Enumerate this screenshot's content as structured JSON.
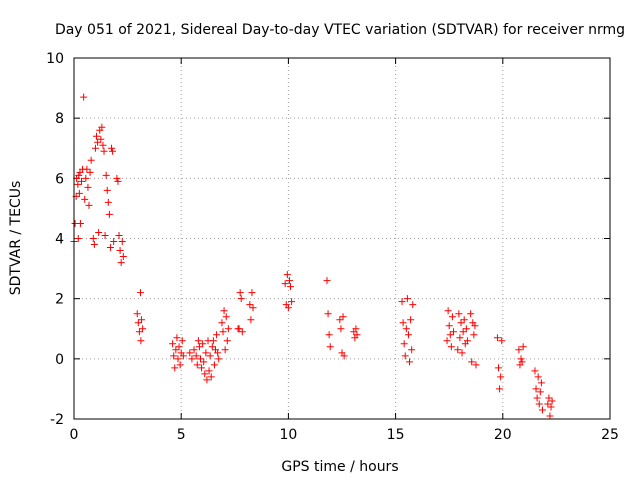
{
  "chart_data": {
    "type": "scatter",
    "title": "Day 051 of 2021, Sidereal Day-to-day VTEC variation (SDTVAR) for receiver nrmg",
    "xlabel": "GPS time / hours",
    "ylabel": "SDTVAR / TECUs",
    "xlim": [
      0,
      25
    ],
    "ylim": [
      -2,
      10
    ],
    "xticks": [
      0,
      5,
      10,
      15,
      20,
      25
    ],
    "xtick_labels": [
      "0",
      "5",
      "10",
      "15",
      "20",
      "25"
    ],
    "yticks": [
      -2,
      0,
      2,
      4,
      6,
      8,
      10
    ],
    "ytick_labels": [
      "-2",
      "0",
      "2",
      "4",
      "6",
      "8",
      "10"
    ],
    "grid": true,
    "marker": "+",
    "color": "#ff0000",
    "series": [
      {
        "name": "SDTVAR",
        "points": [
          [
            0.0,
            3.9
          ],
          [
            0.05,
            4.5
          ],
          [
            0.1,
            5.4
          ],
          [
            0.12,
            6.0
          ],
          [
            0.18,
            5.8
          ],
          [
            0.2,
            4.0
          ],
          [
            0.22,
            6.1
          ],
          [
            0.25,
            5.5
          ],
          [
            0.28,
            6.2
          ],
          [
            0.3,
            4.5
          ],
          [
            0.35,
            5.9
          ],
          [
            0.4,
            6.3
          ],
          [
            0.45,
            8.7
          ],
          [
            0.5,
            5.3
          ],
          [
            0.55,
            6.0
          ],
          [
            0.6,
            6.3
          ],
          [
            0.65,
            5.7
          ],
          [
            0.7,
            5.1
          ],
          [
            0.75,
            6.2
          ],
          [
            0.8,
            6.6
          ],
          [
            0.9,
            4.0
          ],
          [
            0.95,
            3.8
          ],
          [
            1.0,
            7.0
          ],
          [
            1.05,
            7.4
          ],
          [
            1.1,
            7.2
          ],
          [
            1.15,
            4.2
          ],
          [
            1.2,
            7.6
          ],
          [
            1.25,
            7.3
          ],
          [
            1.3,
            7.7
          ],
          [
            1.35,
            7.1
          ],
          [
            1.4,
            6.9
          ],
          [
            1.45,
            4.1
          ],
          [
            1.5,
            6.1
          ],
          [
            1.55,
            5.6
          ],
          [
            1.6,
            5.2
          ],
          [
            1.65,
            4.8
          ],
          [
            1.7,
            3.7
          ],
          [
            1.75,
            7.0
          ],
          [
            1.8,
            6.9
          ],
          [
            1.85,
            3.9
          ],
          [
            2.0,
            6.0
          ],
          [
            2.05,
            5.9
          ],
          [
            2.1,
            4.1
          ],
          [
            2.15,
            3.6
          ],
          [
            2.2,
            3.2
          ],
          [
            2.25,
            3.9
          ],
          [
            2.3,
            3.4
          ],
          [
            2.95,
            1.5
          ],
          [
            3.0,
            1.2
          ],
          [
            3.05,
            0.9
          ],
          [
            3.1,
            2.2
          ],
          [
            3.12,
            0.6
          ],
          [
            3.15,
            1.3
          ],
          [
            3.2,
            1.0
          ],
          [
            4.6,
            0.5
          ],
          [
            4.65,
            0.1
          ],
          [
            4.7,
            -0.3
          ],
          [
            4.75,
            0.3
          ],
          [
            4.8,
            0.7
          ],
          [
            4.85,
            0.0
          ],
          [
            4.9,
            0.4
          ],
          [
            4.95,
            -0.2
          ],
          [
            5.0,
            0.2
          ],
          [
            5.05,
            0.6
          ],
          [
            5.1,
            0.1
          ],
          [
            5.4,
            0.2
          ],
          [
            5.5,
            0.0
          ],
          [
            5.6,
            0.3
          ],
          [
            5.7,
            0.1
          ],
          [
            5.75,
            -0.2
          ],
          [
            5.8,
            0.6
          ],
          [
            5.85,
            0.4
          ],
          [
            5.9,
            0.0
          ],
          [
            5.95,
            -0.3
          ],
          [
            6.0,
            0.5
          ],
          [
            6.05,
            -0.1
          ],
          [
            6.1,
            -0.5
          ],
          [
            6.15,
            0.2
          ],
          [
            6.2,
            -0.7
          ],
          [
            6.25,
            0.6
          ],
          [
            6.3,
            -0.4
          ],
          [
            6.35,
            0.1
          ],
          [
            6.4,
            -0.6
          ],
          [
            6.45,
            0.4
          ],
          [
            6.5,
            0.6
          ],
          [
            6.55,
            -0.2
          ],
          [
            6.6,
            0.3
          ],
          [
            6.65,
            0.8
          ],
          [
            6.7,
            0.2
          ],
          [
            6.75,
            0.0
          ],
          [
            6.9,
            1.2
          ],
          [
            6.95,
            0.9
          ],
          [
            7.0,
            1.6
          ],
          [
            7.05,
            0.3
          ],
          [
            7.1,
            1.4
          ],
          [
            7.15,
            0.6
          ],
          [
            7.2,
            1.0
          ],
          [
            7.65,
            1.0
          ],
          [
            7.7,
            1.0
          ],
          [
            7.75,
            2.2
          ],
          [
            7.8,
            2.0
          ],
          [
            7.85,
            0.9
          ],
          [
            8.2,
            1.8
          ],
          [
            8.25,
            1.3
          ],
          [
            8.3,
            2.2
          ],
          [
            8.35,
            1.7
          ],
          [
            9.85,
            2.5
          ],
          [
            9.9,
            1.8
          ],
          [
            9.95,
            2.8
          ],
          [
            10.0,
            1.7
          ],
          [
            10.05,
            2.6
          ],
          [
            10.1,
            2.4
          ],
          [
            10.15,
            1.9
          ],
          [
            11.8,
            2.6
          ],
          [
            11.85,
            1.5
          ],
          [
            11.9,
            0.8
          ],
          [
            11.95,
            0.4
          ],
          [
            12.4,
            1.3
          ],
          [
            12.45,
            1.0
          ],
          [
            12.5,
            0.2
          ],
          [
            12.55,
            1.4
          ],
          [
            12.6,
            0.1
          ],
          [
            13.05,
            0.9
          ],
          [
            13.1,
            0.7
          ],
          [
            13.15,
            1.0
          ],
          [
            13.2,
            0.8
          ],
          [
            15.3,
            1.9
          ],
          [
            15.35,
            1.2
          ],
          [
            15.4,
            0.5
          ],
          [
            15.45,
            0.1
          ],
          [
            15.5,
            1.0
          ],
          [
            15.55,
            2.0
          ],
          [
            15.6,
            0.8
          ],
          [
            15.65,
            -0.1
          ],
          [
            15.7,
            1.3
          ],
          [
            15.75,
            0.3
          ],
          [
            15.8,
            1.8
          ],
          [
            17.4,
            0.6
          ],
          [
            17.45,
            1.6
          ],
          [
            17.5,
            1.1
          ],
          [
            17.55,
            0.8
          ],
          [
            17.6,
            0.4
          ],
          [
            17.65,
            1.4
          ],
          [
            17.7,
            0.9
          ],
          [
            17.9,
            0.3
          ],
          [
            17.95,
            1.5
          ],
          [
            18.0,
            0.7
          ],
          [
            18.05,
            1.2
          ],
          [
            18.1,
            0.2
          ],
          [
            18.15,
            0.9
          ],
          [
            18.2,
            1.3
          ],
          [
            18.25,
            0.5
          ],
          [
            18.3,
            1.0
          ],
          [
            18.35,
            0.6
          ],
          [
            18.5,
            1.5
          ],
          [
            18.55,
            -0.1
          ],
          [
            18.6,
            1.2
          ],
          [
            18.65,
            0.8
          ],
          [
            18.7,
            1.1
          ],
          [
            18.75,
            -0.2
          ],
          [
            19.75,
            0.7
          ],
          [
            19.8,
            -0.3
          ],
          [
            19.85,
            -1.0
          ],
          [
            19.9,
            -0.6
          ],
          [
            19.95,
            0.6
          ],
          [
            20.75,
            0.3
          ],
          [
            20.8,
            -0.2
          ],
          [
            20.85,
            0.0
          ],
          [
            20.9,
            -0.1
          ],
          [
            20.95,
            0.4
          ],
          [
            21.5,
            -0.4
          ],
          [
            21.55,
            -1.0
          ],
          [
            21.6,
            -1.3
          ],
          [
            21.65,
            -0.6
          ],
          [
            21.7,
            -1.5
          ],
          [
            21.75,
            -1.1
          ],
          [
            21.8,
            -0.8
          ],
          [
            21.85,
            -1.7
          ],
          [
            22.1,
            -1.5
          ],
          [
            22.15,
            -1.3
          ],
          [
            22.2,
            -1.9
          ],
          [
            22.25,
            -1.6
          ],
          [
            22.3,
            -1.4
          ]
        ]
      }
    ]
  }
}
